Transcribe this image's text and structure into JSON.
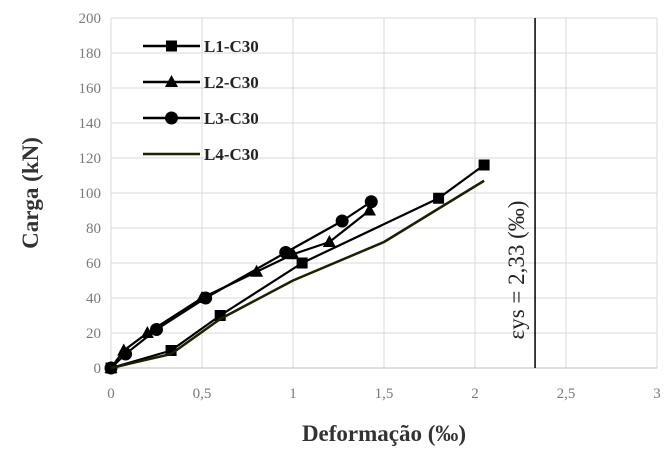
{
  "chart_data": {
    "type": "line",
    "xlabel": "Deformação (‰)",
    "ylabel": "Carga (kN)",
    "xlim": [
      0,
      3
    ],
    "ylim": [
      0,
      200
    ],
    "x_ticks": [
      0,
      0.5,
      1,
      1.5,
      2,
      2.5,
      3
    ],
    "x_tick_labels": [
      "0",
      "0,5",
      "1",
      "1,5",
      "2",
      "2,5",
      "3"
    ],
    "y_ticks": [
      0,
      20,
      40,
      60,
      80,
      100,
      120,
      140,
      160,
      180,
      200
    ],
    "y_tick_labels": [
      "0",
      "20",
      "40",
      "60",
      "80",
      "100",
      "120",
      "140",
      "160",
      "180",
      "200"
    ],
    "grid": true,
    "legend_position": "top-left",
    "series": [
      {
        "name": "L1-C30",
        "marker": "square",
        "color": "#000000",
        "x": [
          0,
          0.33,
          0.6,
          1.05,
          1.8,
          2.05
        ],
        "y": [
          0,
          10,
          30,
          60,
          97,
          116
        ]
      },
      {
        "name": "L2-C30",
        "marker": "triangle",
        "color": "#000000",
        "x": [
          0,
          0.07,
          0.2,
          0.5,
          0.8,
          1.0,
          1.2,
          1.42
        ],
        "y": [
          0,
          10,
          20,
          40,
          55,
          65,
          72,
          90
        ]
      },
      {
        "name": "L3-C30",
        "marker": "circle",
        "color": "#000000",
        "x": [
          0,
          0.08,
          0.25,
          0.52,
          0.96,
          1.27,
          1.43
        ],
        "y": [
          0,
          8,
          22,
          40,
          66,
          84,
          95
        ]
      },
      {
        "name": "L4-C30",
        "marker": "none",
        "color": "#1e1e00",
        "x": [
          0,
          0.33,
          0.6,
          1.0,
          1.5,
          2.05
        ],
        "y": [
          0,
          8,
          28,
          50,
          72,
          107
        ]
      }
    ],
    "annotations": [
      {
        "type": "vline",
        "x": 2.33,
        "label": "εys = 2,33 (‰)"
      }
    ]
  }
}
